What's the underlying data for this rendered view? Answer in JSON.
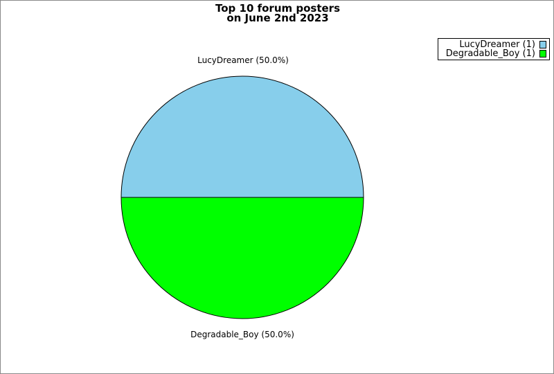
{
  "chart_data": {
    "type": "pie",
    "title": [
      "Top 10 forum posters",
      "on June 2nd 2023"
    ],
    "slices": [
      {
        "label": "LucyDreamer",
        "value": 1,
        "percent_label": "LucyDreamer (50.0%)",
        "legend": "LucyDreamer (1)",
        "color": "#87CEEB"
      },
      {
        "label": "Degradable_Boy",
        "value": 1,
        "percent_label": "Degradable_Boy (50.0%)",
        "legend": "Degradable_Boy (1)",
        "color": "#00FF00"
      }
    ],
    "legend_position": "top-right"
  }
}
